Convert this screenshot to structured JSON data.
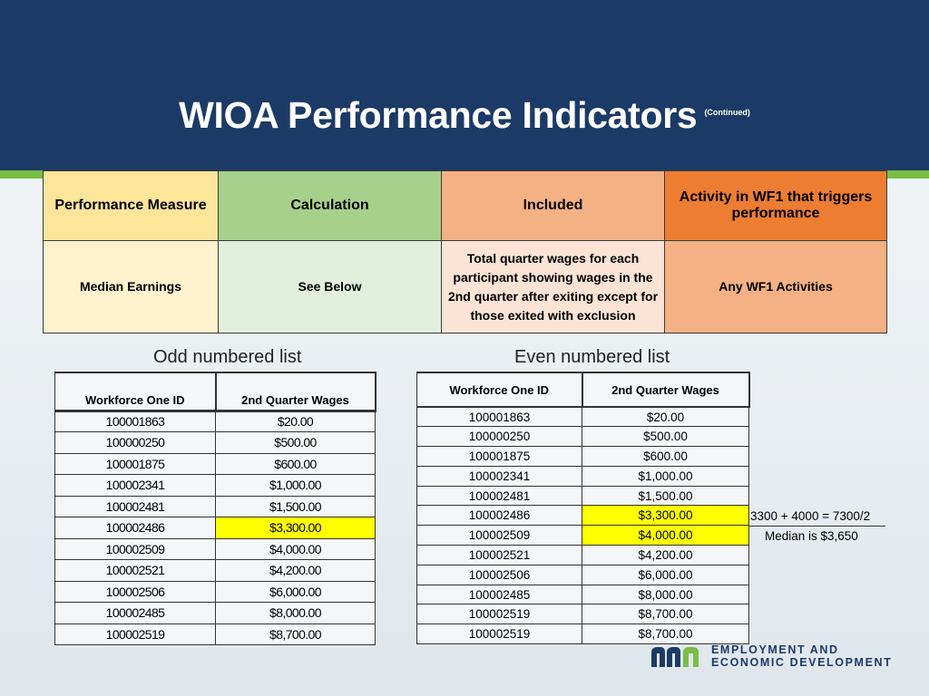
{
  "slide": {
    "title": "WIOA Performance Indicators",
    "title_note": "(Continued)"
  },
  "measure_table": {
    "headers": [
      "Performance Measure",
      "Calculation",
      "Included",
      "Activity in WF1 that triggers performance"
    ],
    "row": [
      "Median Earnings",
      "See Below",
      "Total quarter wages for each participant showing wages in the 2nd quarter after exiting except for those exited with exclusion",
      "Any WF1 Activities"
    ]
  },
  "odd_list": {
    "title": "Odd numbered list",
    "headers": [
      "Workforce One ID",
      "2nd Quarter Wages"
    ],
    "rows": [
      [
        "100001863",
        "$20.00"
      ],
      [
        "100000250",
        "$500.00"
      ],
      [
        "100001875",
        "$600.00"
      ],
      [
        "100002341",
        "$1,000.00"
      ],
      [
        "100002481",
        "$1,500.00"
      ],
      [
        "100002486",
        "$3,300.00"
      ],
      [
        "100002509",
        "$4,000.00"
      ],
      [
        "100002521",
        "$4,200.00"
      ],
      [
        "100002506",
        "$6,000.00"
      ],
      [
        "100002485",
        "$8,000.00"
      ],
      [
        "100002519",
        "$8,700.00"
      ]
    ],
    "highlighted_row": 5
  },
  "even_list": {
    "title": "Even numbered list",
    "headers": [
      "Workforce One ID",
      "2nd Quarter Wages"
    ],
    "rows": [
      [
        "100001863",
        "$20.00"
      ],
      [
        "100000250",
        "$500.00"
      ],
      [
        "100001875",
        "$600.00"
      ],
      [
        "100002341",
        "$1,000.00"
      ],
      [
        "100002481",
        "$1,500.00"
      ],
      [
        "100002486",
        "$3,300.00"
      ],
      [
        "100002509",
        "$4,000.00"
      ],
      [
        "100002521",
        "$4,200.00"
      ],
      [
        "100002506",
        "$6,000.00"
      ],
      [
        "100002485",
        "$8,000.00"
      ],
      [
        "100002519",
        "$8,700.00"
      ],
      [
        "100002519",
        "$8,700.00"
      ]
    ],
    "highlighted_rows": [
      5,
      6
    ],
    "calculation_note": "3300 + 4000 = 7300/2",
    "median_note": "Median is $3,650"
  },
  "logo": {
    "line1": "EMPLOYMENT AND",
    "line2": "ECONOMIC DEVELOPMENT"
  },
  "colors": {
    "header_bg": "#1c3a66",
    "accent_green": "#78be43",
    "highlight": "#ffff00"
  }
}
